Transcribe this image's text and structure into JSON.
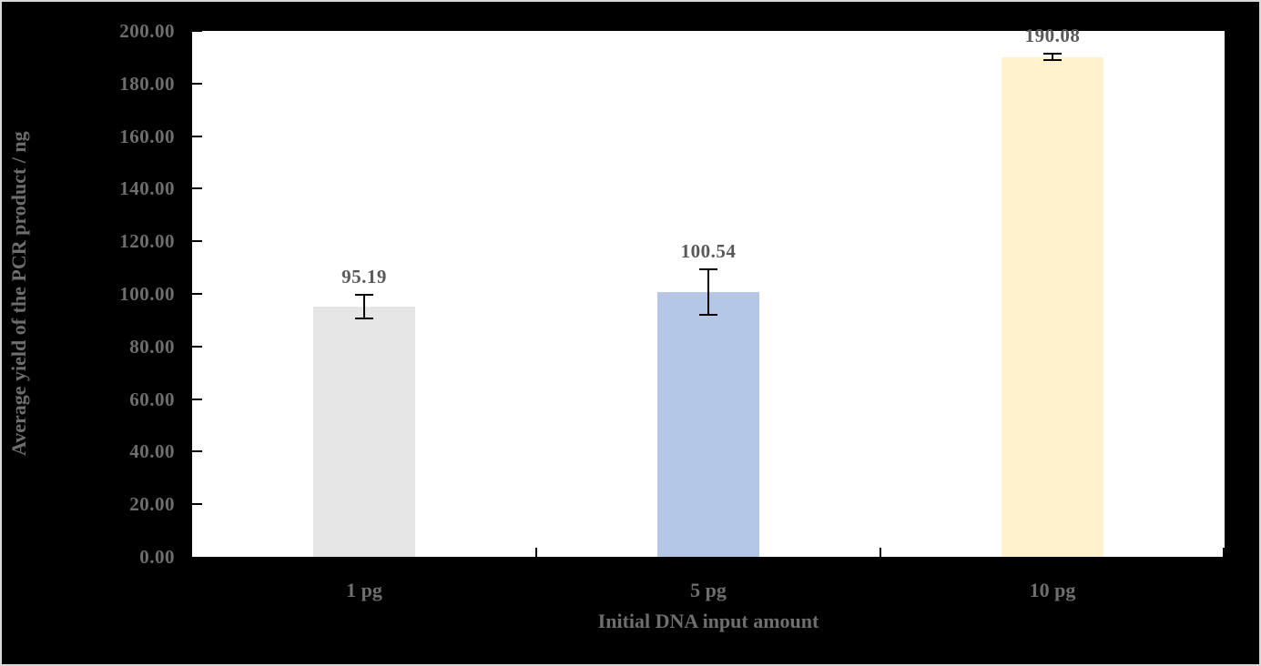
{
  "frame": {
    "background_color": "#000000",
    "border_color": "#d9d9d9",
    "plot_background_color": "#ffffff"
  },
  "text_colors": {
    "axis_text": "#6e6e6e",
    "data_label": "#595959"
  },
  "chart_data": {
    "type": "bar",
    "title": "",
    "categories": [
      "1 pg",
      "5 pg",
      "10 pg"
    ],
    "values": [
      95.19,
      100.54,
      190.08
    ],
    "error_bars": [
      4.9,
      9.0,
      1.5
    ],
    "data_labels": [
      "95.19",
      "100.54",
      "190.08"
    ],
    "bar_colors": [
      "#e7e6e6",
      "#b4c7e7",
      "#fff2cc"
    ],
    "error_bar_color": "#000000",
    "tick_color": "#000000",
    "xlabel": "Initial DNA input amount",
    "ylabel": "Average yield of the PCR product / ng",
    "ylim": [
      0,
      200
    ],
    "ytick_step": 20,
    "ytick_labels": [
      "200.00",
      "180.00",
      "160.00",
      "140.00",
      "120.00",
      "100.00",
      "80.00",
      "60.00",
      "40.00",
      "20.00",
      "0.00"
    ],
    "grid": false,
    "legend": null
  }
}
